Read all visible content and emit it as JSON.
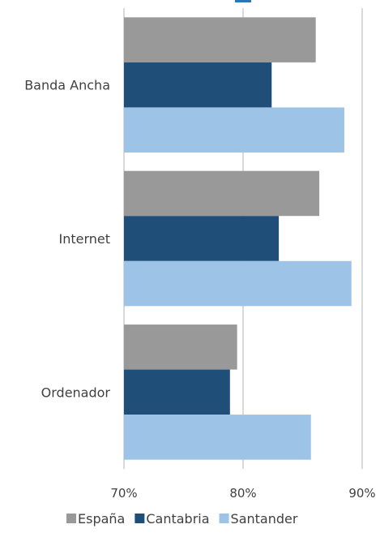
{
  "chart_data": {
    "type": "bar",
    "orientation": "horizontal",
    "categories": [
      "Banda Ancha",
      "Internet",
      "Ordenador"
    ],
    "series": [
      {
        "name": "España",
        "values": [
          86.1,
          86.4,
          79.5
        ]
      },
      {
        "name": "Cantabria",
        "values": [
          82.4,
          83.0,
          78.9
        ]
      },
      {
        "name": "Santander",
        "values": [
          88.5,
          89.1,
          85.7
        ]
      }
    ],
    "xlim": [
      70,
      90
    ],
    "xticks": [
      "70%",
      "80%",
      "90%"
    ],
    "grid": "vertical",
    "legend_position": "bottom",
    "colors": {
      "España": "#999999",
      "Cantabria": "#1f4e79",
      "Santander": "#9dc3e6"
    }
  }
}
